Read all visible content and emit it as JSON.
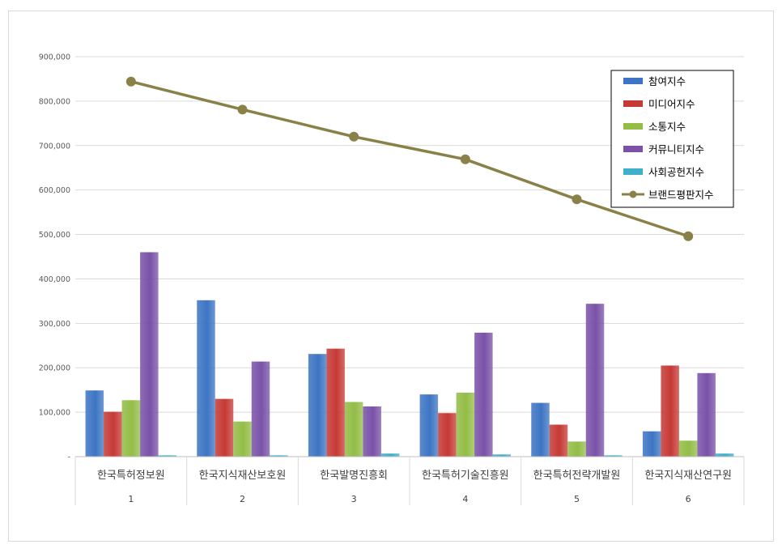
{
  "chart_data": {
    "type": "bar",
    "categories": [
      "한국특허정보원",
      "한국지식재산보호원",
      "한국발명진흥회",
      "한국특허기술진흥원",
      "한국특허전략개발원",
      "한국지식재산연구원"
    ],
    "ranks": [
      "1",
      "2",
      "3",
      "4",
      "5",
      "6"
    ],
    "ylim": [
      0,
      900000
    ],
    "yticks": [
      0,
      100000,
      200000,
      300000,
      400000,
      500000,
      600000,
      700000,
      800000,
      900000
    ],
    "ytick_labels": [
      "-",
      "100,000",
      "200,000",
      "300,000",
      "400,000",
      "500,000",
      "600,000",
      "700,000",
      "800,000",
      "900,000"
    ],
    "grid": true,
    "legend_position": "top-right",
    "series": [
      {
        "name": "참여지수",
        "type": "bar",
        "color": "#3d75c4",
        "values": [
          149000,
          352000,
          231000,
          140000,
          121000,
          57000
        ]
      },
      {
        "name": "미디어지수",
        "type": "bar",
        "color": "#c63a36",
        "values": [
          101000,
          130000,
          243000,
          98000,
          72000,
          205000
        ]
      },
      {
        "name": "소통지수",
        "type": "bar",
        "color": "#93bd47",
        "values": [
          127000,
          79000,
          123000,
          144000,
          34000,
          36000
        ]
      },
      {
        "name": "커뮤니티지수",
        "type": "bar",
        "color": "#7a52a8",
        "values": [
          460000,
          214000,
          113000,
          279000,
          344000,
          188000
        ]
      },
      {
        "name": "사회공헌지수",
        "type": "bar",
        "color": "#3fb0c9",
        "values": [
          3000,
          3000,
          7000,
          5000,
          3000,
          7000
        ]
      },
      {
        "name": "브랜드평판지수",
        "type": "line",
        "color": "#8a8148",
        "values": [
          844000,
          781000,
          720000,
          669000,
          579000,
          496000
        ]
      }
    ]
  }
}
